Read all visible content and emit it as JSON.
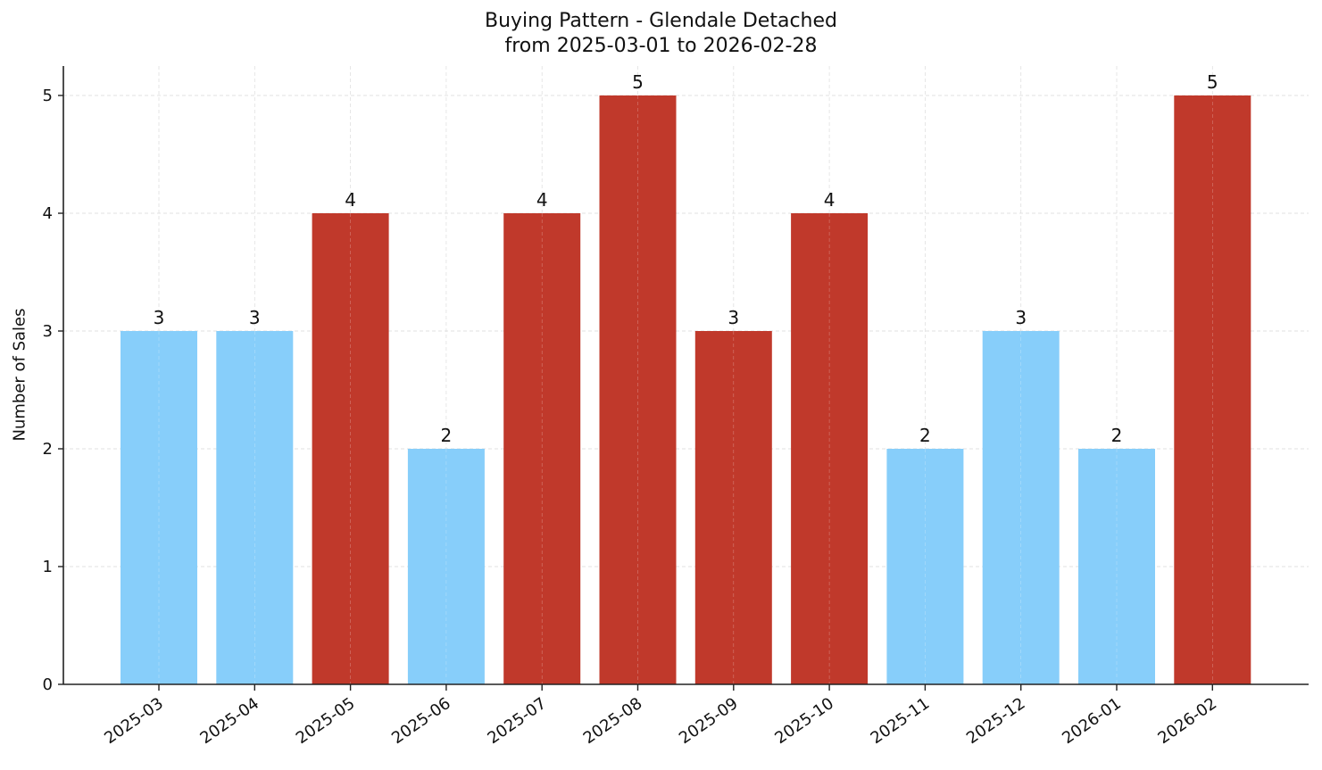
{
  "title_line1": "Buying Pattern - Glendale Detached",
  "title_line2": "from 2025-03-01 to 2026-02-28",
  "ylabel": "Number of Sales",
  "colors": {
    "low": "#87CEFA",
    "high": "#C0392B",
    "grid": "#d9d9d9",
    "axis": "#222222"
  },
  "chart_data": {
    "type": "bar",
    "title": "Buying Pattern - Glendale Detached\nfrom 2025-03-01 to 2026-02-28",
    "xlabel": "",
    "ylabel": "Number of Sales",
    "categories": [
      "2025-03",
      "2025-04",
      "2025-05",
      "2025-06",
      "2025-07",
      "2025-08",
      "2025-09",
      "2025-10",
      "2025-11",
      "2025-12",
      "2026-01",
      "2026-02"
    ],
    "values": [
      3,
      3,
      4,
      2,
      4,
      5,
      3,
      4,
      2,
      3,
      2,
      5
    ],
    "bar_colors": [
      "#87CEFA",
      "#87CEFA",
      "#C0392B",
      "#87CEFA",
      "#C0392B",
      "#C0392B",
      "#C0392B",
      "#C0392B",
      "#87CEFA",
      "#87CEFA",
      "#87CEFA",
      "#C0392B"
    ],
    "yticks": [
      0,
      1,
      2,
      3,
      4,
      5
    ],
    "ylim": [
      0,
      5.25
    ],
    "grid": true,
    "data_labels": true
  }
}
